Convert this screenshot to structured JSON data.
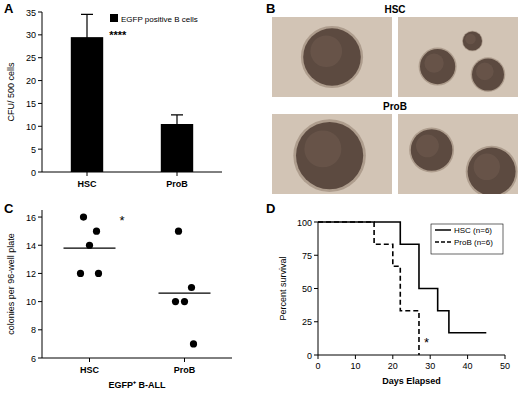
{
  "chart_data": [
    {
      "type": "bar",
      "title": "A",
      "categories": [
        "HSC",
        "ProB"
      ],
      "series": [
        {
          "name": "EGFP positive B cells",
          "color": "#000000",
          "values": [
            29.5,
            10.5
          ],
          "errors": [
            5,
            2
          ]
        }
      ],
      "y_label": "CFU/ 500 cells",
      "ylim": [
        0,
        35
      ],
      "yticks": [
        0,
        5,
        10,
        15,
        20,
        25,
        30,
        35
      ],
      "legend": "upper right",
      "annotations": [
        "****"
      ]
    },
    {
      "type": "image",
      "title": "B",
      "labels": [
        "HSC",
        "ProB"
      ]
    },
    {
      "type": "scatter",
      "title": "C",
      "categories": [
        "HSC",
        "ProB"
      ],
      "points": [
        [
          16,
          15,
          14,
          12,
          12
        ],
        [
          15,
          11,
          10,
          10,
          7
        ]
      ],
      "means": [
        13.8,
        10.6
      ],
      "x_label": "EGFP⁺ B-ALL",
      "y_label": "colonies per 96-well plate",
      "ylim": [
        6,
        16.5
      ],
      "yticks": [
        6,
        8,
        10,
        12,
        14,
        16
      ],
      "color": "#000000",
      "marker": "circle",
      "annotations": [
        "*"
      ]
    },
    {
      "type": "line",
      "title": "D",
      "series": [
        {
          "name": "HSC (n=6)",
          "color": "#000000",
          "line_style": "solid",
          "x": [
            0,
            22,
            22,
            27,
            27,
            32,
            32,
            35,
            35,
            45
          ],
          "values": [
            100,
            100,
            83.3,
            83.3,
            50,
            50,
            33.3,
            33.3,
            16.7,
            16.7
          ]
        },
        {
          "name": "ProB (n=6)",
          "color": "#000000",
          "line_style": "dashed",
          "x": [
            0,
            15,
            15,
            20,
            20,
            22,
            22,
            27,
            27
          ],
          "values": [
            100,
            100,
            83.3,
            83.3,
            66.7,
            66.7,
            33.3,
            33.3,
            0
          ]
        }
      ],
      "x_label": "Days Elapsed",
      "y_label": "Percent survival",
      "xlim": [
        0,
        50
      ],
      "xticks": [
        0,
        10,
        20,
        30,
        40,
        50
      ],
      "ylim": [
        0,
        100
      ],
      "yticks": [
        0,
        25,
        50,
        75,
        100
      ],
      "legend": "upper right",
      "annotations": [
        "*"
      ]
    }
  ]
}
